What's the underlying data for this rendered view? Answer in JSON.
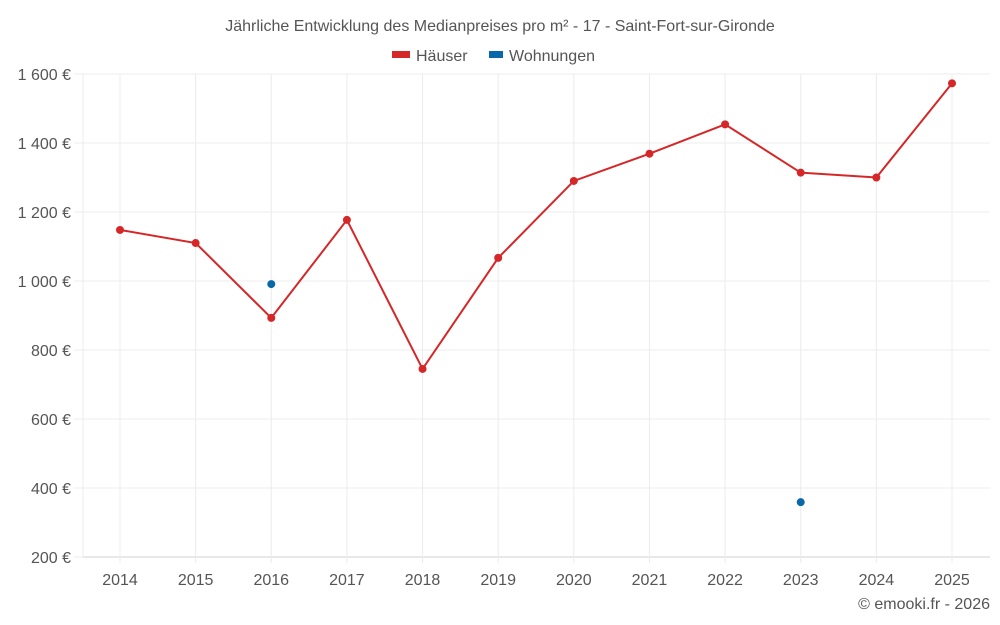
{
  "chart_data": {
    "type": "line",
    "title": "Jährliche Entwicklung des Medianpreises pro m² - 17 - Saint-Fort-sur-Gironde",
    "xlabel": "",
    "ylabel": "",
    "categories": [
      "2014",
      "2015",
      "2016",
      "2017",
      "2018",
      "2019",
      "2020",
      "2021",
      "2022",
      "2023",
      "2024",
      "2025"
    ],
    "ylim": [
      200,
      1600
    ],
    "yticks": [
      200,
      400,
      600,
      800,
      1000,
      1200,
      1400,
      1600
    ],
    "ytick_labels": [
      "200 €",
      "400 €",
      "600 €",
      "800 €",
      "1 000 €",
      "1 200 €",
      "1 400 €",
      "1 600 €"
    ],
    "grid": true,
    "legend_position": "top-center",
    "series": [
      {
        "name": "Häuser",
        "color": "#d62728",
        "line": true,
        "values": [
          1148,
          1110,
          893,
          1177,
          745,
          1067,
          1290,
          1369,
          1454,
          1314,
          1300,
          1573
        ]
      },
      {
        "name": "Wohnungen",
        "color": "#0868a8",
        "line": false,
        "values": [
          null,
          null,
          991,
          null,
          null,
          null,
          null,
          null,
          null,
          359,
          null,
          null
        ]
      }
    ],
    "credit": "© emooki.fr - 2026"
  }
}
